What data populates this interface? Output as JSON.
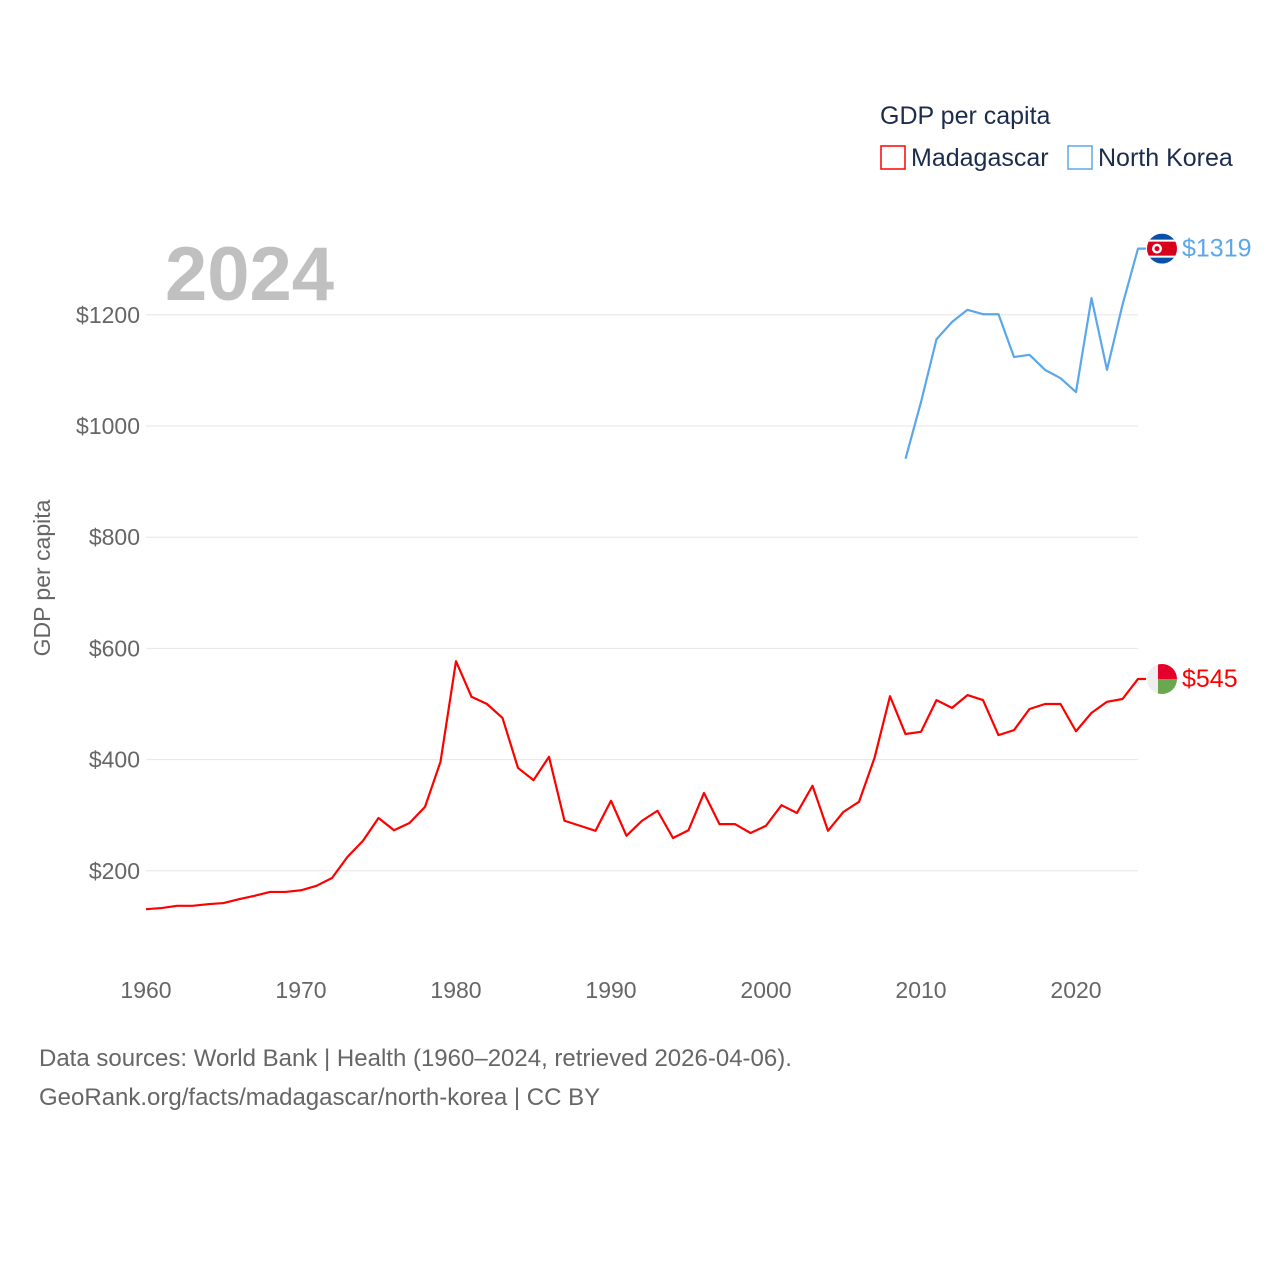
{
  "chart_data": {
    "type": "line",
    "title": "GDP per capita",
    "ylabel": "GDP per capita",
    "xlabel": "",
    "year_label": "2024",
    "xlim": [
      1960,
      2024
    ],
    "ylim": [
      0,
      1380
    ],
    "x_ticks": [
      1960,
      1970,
      1980,
      1990,
      2000,
      2010,
      2020
    ],
    "y_ticks": [
      200,
      400,
      600,
      800,
      1000,
      1200
    ],
    "y_tick_labels": [
      "$200",
      "$400",
      "$600",
      "$800",
      "$1000",
      "$1200"
    ],
    "grid": true,
    "legend_position": "top-right",
    "series": [
      {
        "name": "Madagascar",
        "color": "#ff0000",
        "end_label": "$545",
        "flag_icon": "madagascar-flag-icon",
        "start_year": 1960,
        "values": [
          131,
          133,
          137,
          137,
          140,
          142,
          149,
          155,
          162,
          162,
          165,
          173,
          187,
          225,
          254,
          295,
          273,
          286,
          315,
          396,
          577,
          513,
          500,
          475,
          385,
          363,
          405,
          290,
          281,
          272,
          326,
          263,
          290,
          308,
          259,
          273,
          340,
          284,
          284,
          268,
          281,
          318,
          304,
          353,
          272,
          306,
          324,
          403,
          514,
          446,
          450,
          507,
          493,
          516,
          507,
          444,
          453,
          491,
          500,
          500,
          451,
          484,
          504,
          509,
          545
        ]
      },
      {
        "name": "North Korea",
        "color": "#5ba7ea",
        "end_label": "$1319",
        "flag_icon": "north-korea-flag-icon",
        "start_year": 2009,
        "values": [
          941,
          1043,
          1156,
          1187,
          1209,
          1201,
          1201,
          1124,
          1128,
          1101,
          1086,
          1061,
          1230,
          1101,
          1218,
          1319
        ]
      }
    ]
  },
  "footer": {
    "line1": "Data sources: World Bank | Health (1960–2024, retrieved 2026-04-06).",
    "line2": "GeoRank.org/facts/madagascar/north-korea | CC BY"
  }
}
